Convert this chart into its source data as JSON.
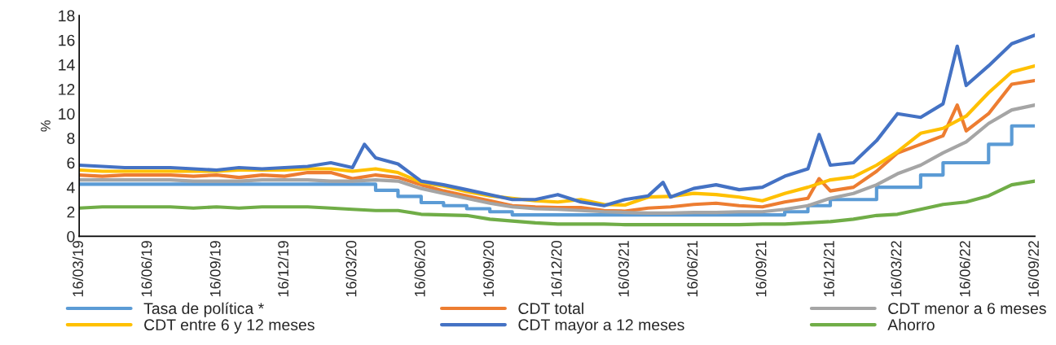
{
  "chart_data": {
    "type": "line",
    "ylabel": "%",
    "ylim": [
      0,
      18
    ],
    "yticks": [
      0,
      2,
      4,
      6,
      8,
      10,
      12,
      14,
      16,
      18
    ],
    "xlim": [
      "2019-03-16",
      "2022-09-16"
    ],
    "xticks": [
      {
        "value": "2019-03-16",
        "label": "16/03/19"
      },
      {
        "value": "2019-06-16",
        "label": "16/06/19"
      },
      {
        "value": "2019-09-16",
        "label": "16/09/19"
      },
      {
        "value": "2019-12-16",
        "label": "16/12/19"
      },
      {
        "value": "2020-03-16",
        "label": "16/03/20"
      },
      {
        "value": "2020-06-16",
        "label": "16/06/20"
      },
      {
        "value": "2020-09-16",
        "label": "16/09/20"
      },
      {
        "value": "2020-12-16",
        "label": "16/12/20"
      },
      {
        "value": "2021-03-16",
        "label": "16/03/21"
      },
      {
        "value": "2021-06-16",
        "label": "16/06/21"
      },
      {
        "value": "2021-09-16",
        "label": "16/09/21"
      },
      {
        "value": "2021-12-16",
        "label": "16/12/21"
      },
      {
        "value": "2022-03-16",
        "label": "16/03/22"
      },
      {
        "value": "2022-06-16",
        "label": "16/06/22"
      },
      {
        "value": "2022-09-16",
        "label": "16/09/22"
      }
    ],
    "x": [
      "2019-03-16",
      "2019-04-16",
      "2019-05-16",
      "2019-06-16",
      "2019-07-16",
      "2019-08-16",
      "2019-09-16",
      "2019-10-16",
      "2019-11-16",
      "2019-12-16",
      "2020-01-16",
      "2020-02-16",
      "2020-03-16",
      "2020-04-16",
      "2020-05-16",
      "2020-06-16",
      "2020-07-16",
      "2020-08-16",
      "2020-09-16",
      "2020-10-16",
      "2020-11-16",
      "2020-12-16",
      "2021-01-16",
      "2021-02-16",
      "2021-03-16",
      "2021-04-16",
      "2021-05-16",
      "2021-06-16",
      "2021-07-16",
      "2021-08-16",
      "2021-09-16",
      "2021-10-16",
      "2021-11-16",
      "2021-12-16",
      "2022-01-16",
      "2022-02-16",
      "2022-03-16",
      "2022-04-16",
      "2022-05-16",
      "2022-06-16",
      "2022-07-16",
      "2022-08-16",
      "2022-09-16"
    ],
    "grid": false,
    "legend": "bottom",
    "marker": "none",
    "line_style": "solid",
    "series": [
      {
        "name": "Tasa de política *",
        "type": "step",
        "color": "#5b9bd5",
        "values": [
          4.25,
          4.25,
          4.25,
          4.25,
          4.25,
          4.25,
          4.25,
          4.25,
          4.25,
          4.25,
          4.25,
          4.25,
          4.25,
          3.75,
          3.25,
          2.75,
          2.5,
          2.25,
          2.0,
          1.75,
          1.75,
          1.75,
          1.75,
          1.75,
          1.75,
          1.75,
          1.75,
          1.75,
          1.75,
          1.75,
          1.75,
          2.0,
          2.5,
          3.0,
          3.0,
          4.0,
          4.0,
          5.0,
          6.0,
          6.0,
          7.5,
          9.0,
          9.0
        ]
      },
      {
        "name": "CDT total",
        "color": "#ed7d31",
        "x": [
          "2019-03-16",
          "2019-04-16",
          "2019-05-16",
          "2019-06-16",
          "2019-07-16",
          "2019-08-16",
          "2019-09-16",
          "2019-10-16",
          "2019-11-16",
          "2019-12-16",
          "2020-01-16",
          "2020-02-16",
          "2020-03-16",
          "2020-04-16",
          "2020-05-16",
          "2020-06-16",
          "2020-07-16",
          "2020-08-16",
          "2020-09-16",
          "2020-10-16",
          "2020-11-16",
          "2020-12-16",
          "2021-01-16",
          "2021-02-16",
          "2021-03-16",
          "2021-04-16",
          "2021-05-16",
          "2021-06-16",
          "2021-07-16",
          "2021-08-16",
          "2021-09-16",
          "2021-10-16",
          "2021-11-16",
          "2021-12-01",
          "2021-12-16",
          "2022-01-16",
          "2022-02-16",
          "2022-03-16",
          "2022-04-16",
          "2022-05-16",
          "2022-06-04",
          "2022-06-16",
          "2022-07-16",
          "2022-08-16",
          "2022-09-16"
        ],
        "values": [
          5.0,
          4.9,
          5.0,
          5.0,
          5.0,
          4.9,
          5.0,
          4.8,
          5.0,
          4.9,
          5.2,
          5.2,
          4.7,
          5.0,
          4.8,
          4.2,
          3.7,
          3.3,
          2.9,
          2.5,
          2.4,
          2.35,
          2.35,
          2.1,
          2.05,
          2.3,
          2.4,
          2.6,
          2.7,
          2.5,
          2.4,
          2.8,
          3.1,
          4.7,
          3.7,
          4.0,
          5.3,
          6.8,
          7.5,
          8.2,
          10.7,
          8.6,
          10.0,
          12.4,
          12.7
        ]
      },
      {
        "name": "CDT menor a 6 meses",
        "color": "#a5a5a5",
        "values": [
          4.6,
          4.6,
          4.6,
          4.6,
          4.6,
          4.5,
          4.5,
          4.5,
          4.6,
          4.6,
          4.6,
          4.5,
          4.5,
          4.6,
          4.5,
          3.9,
          3.5,
          3.1,
          2.7,
          2.4,
          2.25,
          2.2,
          2.1,
          2.0,
          1.95,
          1.9,
          1.9,
          1.95,
          1.95,
          2.0,
          2.0,
          2.2,
          2.5,
          3.1,
          3.5,
          4.2,
          5.1,
          5.8,
          6.8,
          7.7,
          9.2,
          10.3,
          10.7
        ]
      },
      {
        "name": "CDT entre 6 y 12 meses",
        "color": "#ffc000",
        "values": [
          5.4,
          5.3,
          5.3,
          5.3,
          5.3,
          5.3,
          5.3,
          5.4,
          5.4,
          5.4,
          5.5,
          5.5,
          5.3,
          5.5,
          5.2,
          4.4,
          4.1,
          3.65,
          3.3,
          3.1,
          2.9,
          2.8,
          3.0,
          2.6,
          2.55,
          3.2,
          3.25,
          3.5,
          3.4,
          3.2,
          2.9,
          3.5,
          4.0,
          4.6,
          4.85,
          5.8,
          6.9,
          8.4,
          8.8,
          9.8,
          11.7,
          13.4,
          13.9
        ]
      },
      {
        "name": "CDT mayor a 12 meses",
        "color": "#4472c4",
        "x": [
          "2019-03-16",
          "2019-04-16",
          "2019-05-16",
          "2019-06-16",
          "2019-07-16",
          "2019-08-16",
          "2019-09-16",
          "2019-10-16",
          "2019-11-16",
          "2019-12-16",
          "2020-01-16",
          "2020-02-16",
          "2020-03-16",
          "2020-04-01",
          "2020-04-16",
          "2020-05-16",
          "2020-06-16",
          "2020-07-16",
          "2020-08-16",
          "2020-09-16",
          "2020-10-16",
          "2020-11-16",
          "2020-12-16",
          "2021-01-16",
          "2021-02-16",
          "2021-03-16",
          "2021-04-16",
          "2021-05-06",
          "2021-05-16",
          "2021-06-16",
          "2021-07-16",
          "2021-08-16",
          "2021-09-16",
          "2021-10-16",
          "2021-11-16",
          "2021-12-01",
          "2021-12-16",
          "2022-01-16",
          "2022-02-16",
          "2022-03-16",
          "2022-04-16",
          "2022-05-16",
          "2022-06-04",
          "2022-06-16",
          "2022-07-16",
          "2022-08-16",
          "2022-09-16"
        ],
        "values": [
          5.8,
          5.7,
          5.6,
          5.6,
          5.6,
          5.5,
          5.4,
          5.6,
          5.5,
          5.6,
          5.7,
          6.0,
          5.6,
          7.5,
          6.4,
          5.9,
          4.5,
          4.2,
          3.8,
          3.4,
          3.0,
          3.0,
          3.4,
          2.8,
          2.5,
          3.0,
          3.3,
          4.4,
          3.2,
          3.9,
          4.2,
          3.8,
          4.0,
          4.9,
          5.5,
          8.3,
          5.8,
          6.0,
          7.8,
          10.0,
          9.7,
          10.8,
          15.5,
          12.3,
          13.9,
          15.7,
          16.4
        ]
      },
      {
        "name": "Ahorro",
        "color": "#70ad47",
        "values": [
          2.3,
          2.4,
          2.4,
          2.4,
          2.4,
          2.3,
          2.4,
          2.3,
          2.4,
          2.4,
          2.4,
          2.3,
          2.2,
          2.1,
          2.1,
          1.8,
          1.75,
          1.7,
          1.4,
          1.25,
          1.1,
          1.0,
          1.0,
          1.0,
          0.95,
          0.95,
          0.95,
          0.95,
          0.95,
          0.95,
          1.0,
          1.0,
          1.1,
          1.2,
          1.4,
          1.7,
          1.8,
          2.2,
          2.6,
          2.8,
          3.3,
          4.2,
          4.5
        ]
      }
    ]
  }
}
